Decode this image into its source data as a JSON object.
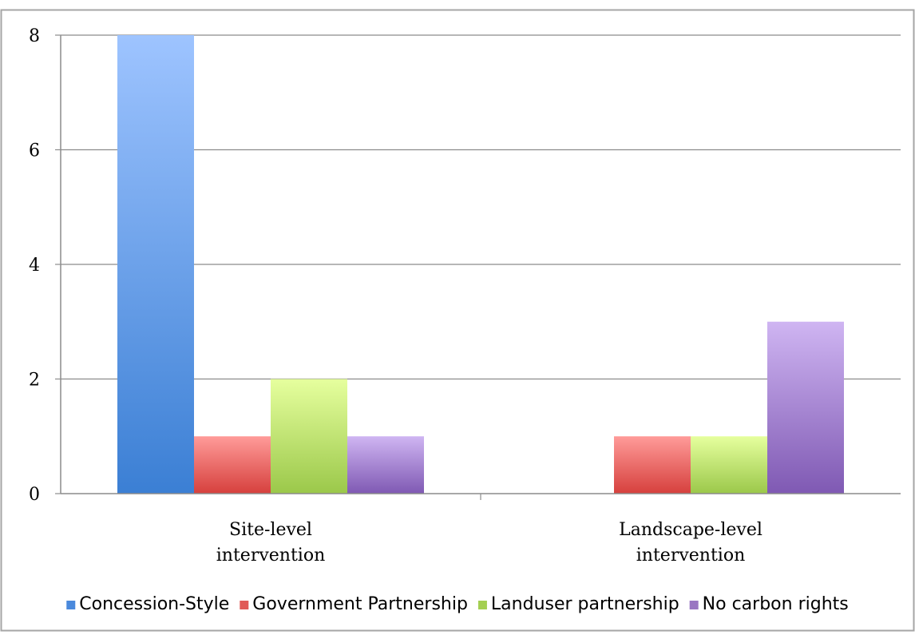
{
  "chart_data": {
    "type": "bar",
    "categories": [
      "Site-level intervention",
      "Landscape-level intervention"
    ],
    "category_lines": [
      [
        "Site-level",
        "intervention"
      ],
      [
        "Landscape-level",
        "intervention"
      ]
    ],
    "series": [
      {
        "name": "Concession-Style",
        "values": [
          8,
          0
        ],
        "color": "#4a89dc",
        "color_light": "#9ec4ff",
        "color_dark": "#3b7fd4"
      },
      {
        "name": "Government Partnership",
        "values": [
          1,
          1
        ],
        "color": "#e05a57",
        "color_light": "#ff9b99",
        "color_dark": "#d6403d"
      },
      {
        "name": "Landuser partnership",
        "values": [
          2,
          1
        ],
        "color": "#a4cf52",
        "color_light": "#e6ff9e",
        "color_dark": "#9bc84a"
      },
      {
        "name": "No carbon rights",
        "values": [
          1,
          3
        ],
        "color": "#9a76c2",
        "color_light": "#cfb5f2",
        "color_dark": "#7f59b3"
      }
    ],
    "ylim": [
      0,
      8
    ],
    "yticks": [
      0,
      2,
      4,
      6,
      8
    ],
    "grid": true,
    "legend_position": "bottom"
  }
}
